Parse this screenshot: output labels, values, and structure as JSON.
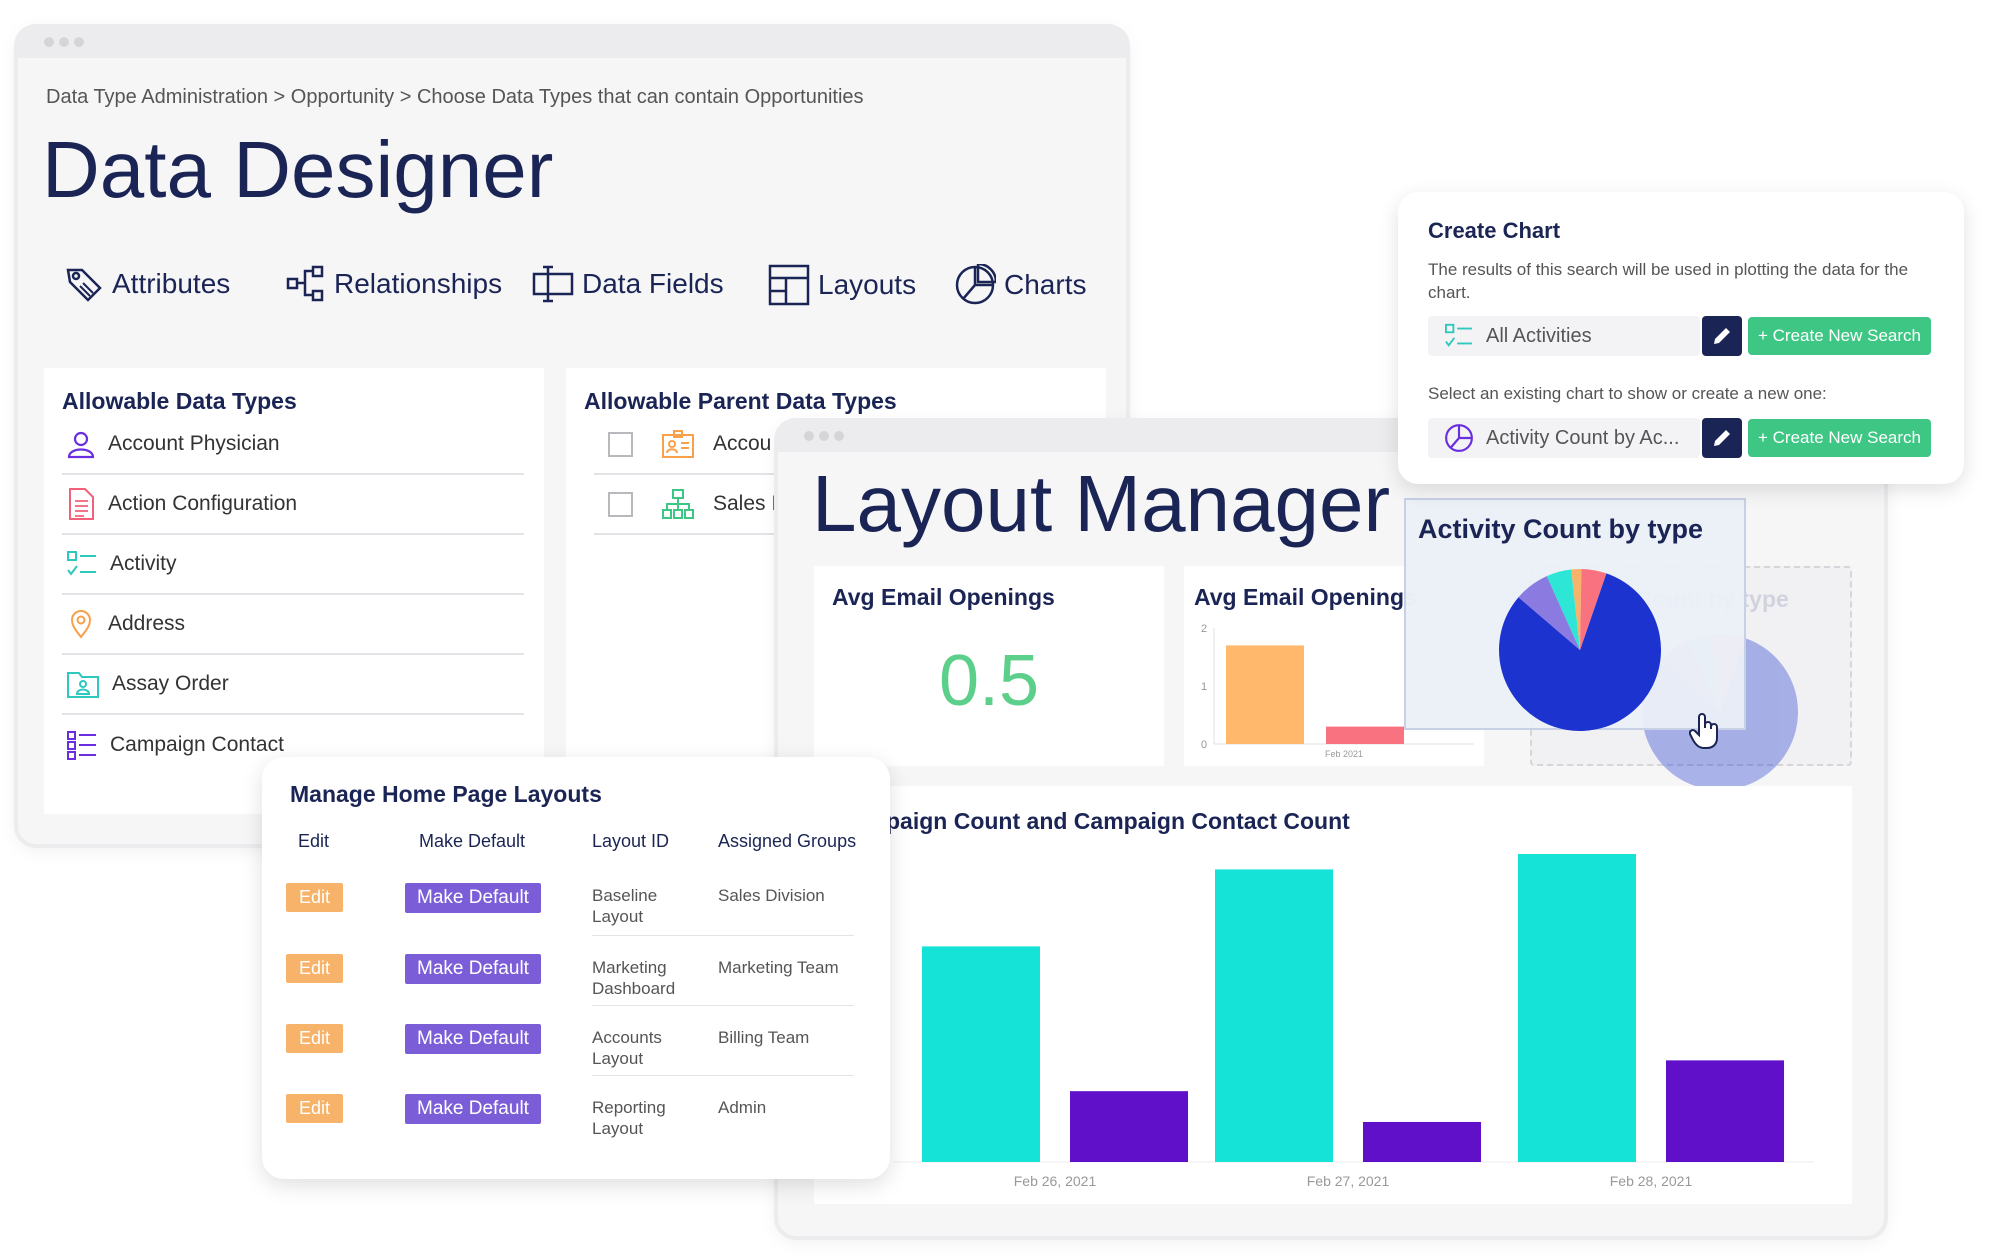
{
  "data_designer": {
    "breadcrumb": "Data Type Administration > Opportunity > Choose Data Types that can contain Opportunities",
    "title": "Data Designer",
    "nav": [
      "Attributes",
      "Relationships",
      "Data Fields",
      "Layouts",
      "Charts"
    ],
    "allowable_title": "Allowable Data Types",
    "allowable_items": [
      "Account Physician",
      "Action Configuration",
      "Activity",
      "Address",
      "Assay Order",
      "Campaign Contact"
    ],
    "parent_title": "Allowable Parent Data Types",
    "parent_items": [
      "Accou",
      "Sales I"
    ]
  },
  "layout_manager": {
    "title": "Layout Manager",
    "widget1_title": "Avg Email Openings",
    "widget1_value": "0.5",
    "widget2_title": "Avg Email Opening",
    "widget2_suffix": "s",
    "ghost_title": "Activity Count by type",
    "bottom_title": "paign Count and Campaign Contact Count"
  },
  "chart_data": [
    {
      "type": "bar",
      "title": "Avg Email Openings",
      "categories": [
        "Feb 2021"
      ],
      "yticks": [
        "2",
        "1",
        "0"
      ],
      "ylim": [
        0,
        2
      ],
      "series": [
        {
          "values": [
            1.7
          ],
          "color": "#ffb86c"
        },
        {
          "values": [
            0.3
          ],
          "color": "#f8737f"
        }
      ]
    },
    {
      "type": "bar",
      "title": "paign Count and Campaign Contact Count",
      "categories": [
        "Feb 26, 2021",
        "Feb 27, 2021",
        "Feb 28, 2021"
      ],
      "ylim": [
        0,
        10
      ],
      "series": [
        {
          "values": [
            7,
            9.5,
            10
          ],
          "color": "#16e3d8"
        },
        {
          "values": [
            2.3,
            1.3,
            3.3
          ],
          "color": "#6110c9"
        }
      ]
    },
    {
      "type": "pie",
      "title": "Activity Count by type",
      "slices": [
        {
          "value": 81,
          "color": "#1c33d0"
        },
        {
          "value": 7,
          "color": "#8b7ae0"
        },
        {
          "value": 5,
          "color": "#2ee6d6"
        },
        {
          "value": 2,
          "color": "#f8b36b"
        },
        {
          "value": 5,
          "color": "#f8737f"
        }
      ]
    }
  ],
  "create_chart": {
    "title": "Create Chart",
    "description": "The results of this search will be used in plotting the data for the chart.",
    "search_value": "All Activities",
    "create_label": "+ Create New Search",
    "select_label": "Select an existing chart to show or create a new one:",
    "chart_value": "Activity Count by Ac...",
    "create_label2": "+ Create New Search"
  },
  "home_layouts": {
    "title": "Manage Home Page Layouts",
    "headers": [
      "Edit",
      "Make Default",
      "Layout ID",
      "Assigned Groups"
    ],
    "edit_label": "Edit",
    "default_label": "Make Default",
    "rows": [
      {
        "layout": "Baseline Layout",
        "group": "Sales Division"
      },
      {
        "layout": "Marketing Dashboard",
        "group": "Marketing Team"
      },
      {
        "layout": "Accounts Layout",
        "group": "Billing Team"
      },
      {
        "layout": "Reporting Layout",
        "group": "Admin"
      }
    ]
  },
  "colors": {
    "navy": "#1b2555",
    "green_value": "#5ccf8a",
    "purple": "#7b5ed7",
    "orange": "#f8b36b",
    "teal": "#16e3d8"
  }
}
